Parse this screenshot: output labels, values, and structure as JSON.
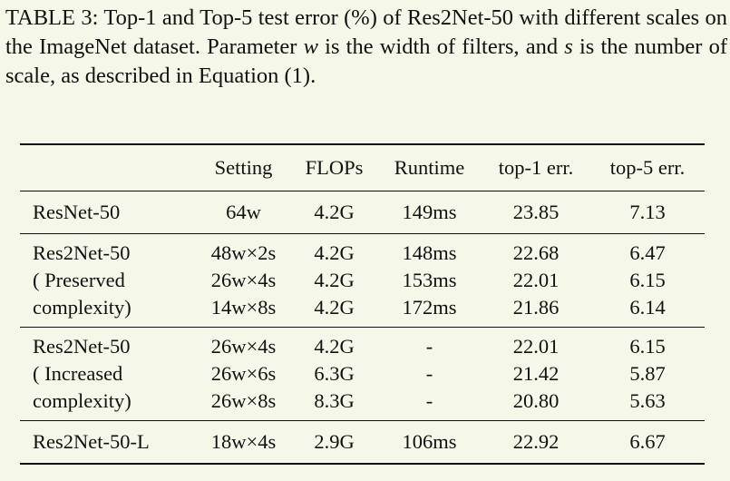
{
  "caption": {
    "line1_a": "TABLE 3: Top-1 and Top-5 test error (",
    "line1_pct": "%",
    "line1_b": ") of Res2Net-50 with different scales on the ImageNet dataset. Parameter ",
    "w": "w",
    "line2_b": " is the width of filters, and ",
    "s": "s",
    "line3_b": " is the number of scale, as described in Equation (1)."
  },
  "table": {
    "headers": [
      "",
      "Setting",
      "FLOPs",
      "Runtime",
      "top-1 err.",
      "top-5 err."
    ],
    "groups": [
      {
        "model_lines": [
          "ResNet-50"
        ],
        "rows": [
          {
            "setting": "64w",
            "flops": "4.2G",
            "runtime": "149ms",
            "top1": "23.85",
            "top5": "7.13"
          }
        ]
      },
      {
        "model_lines": [
          "Res2Net-50",
          "( Preserved",
          "complexity)"
        ],
        "rows": [
          {
            "setting": "48w×2s",
            "flops": "4.2G",
            "runtime": "148ms",
            "top1": "22.68",
            "top5": "6.47"
          },
          {
            "setting": "26w×4s",
            "flops": "4.2G",
            "runtime": "153ms",
            "top1": "22.01",
            "top5": "6.15"
          },
          {
            "setting": "14w×8s",
            "flops": "4.2G",
            "runtime": "172ms",
            "top1": "21.86",
            "top5": "6.14"
          }
        ]
      },
      {
        "model_lines": [
          "Res2Net-50",
          "( Increased",
          "complexity)"
        ],
        "rows": [
          {
            "setting": "26w×4s",
            "flops": "4.2G",
            "runtime": "-",
            "top1": "22.01",
            "top5": "6.15"
          },
          {
            "setting": "26w×6s",
            "flops": "6.3G",
            "runtime": "-",
            "top1": "21.42",
            "top5": "5.87"
          },
          {
            "setting": "26w×8s",
            "flops": "8.3G",
            "runtime": "-",
            "top1": "20.80",
            "top5": "5.63"
          }
        ]
      },
      {
        "model_lines": [
          "Res2Net-50-L"
        ],
        "rows": [
          {
            "setting": "18w×4s",
            "flops": "2.9G",
            "runtime": "106ms",
            "top1": "22.92",
            "top5": "6.67"
          }
        ]
      }
    ]
  }
}
